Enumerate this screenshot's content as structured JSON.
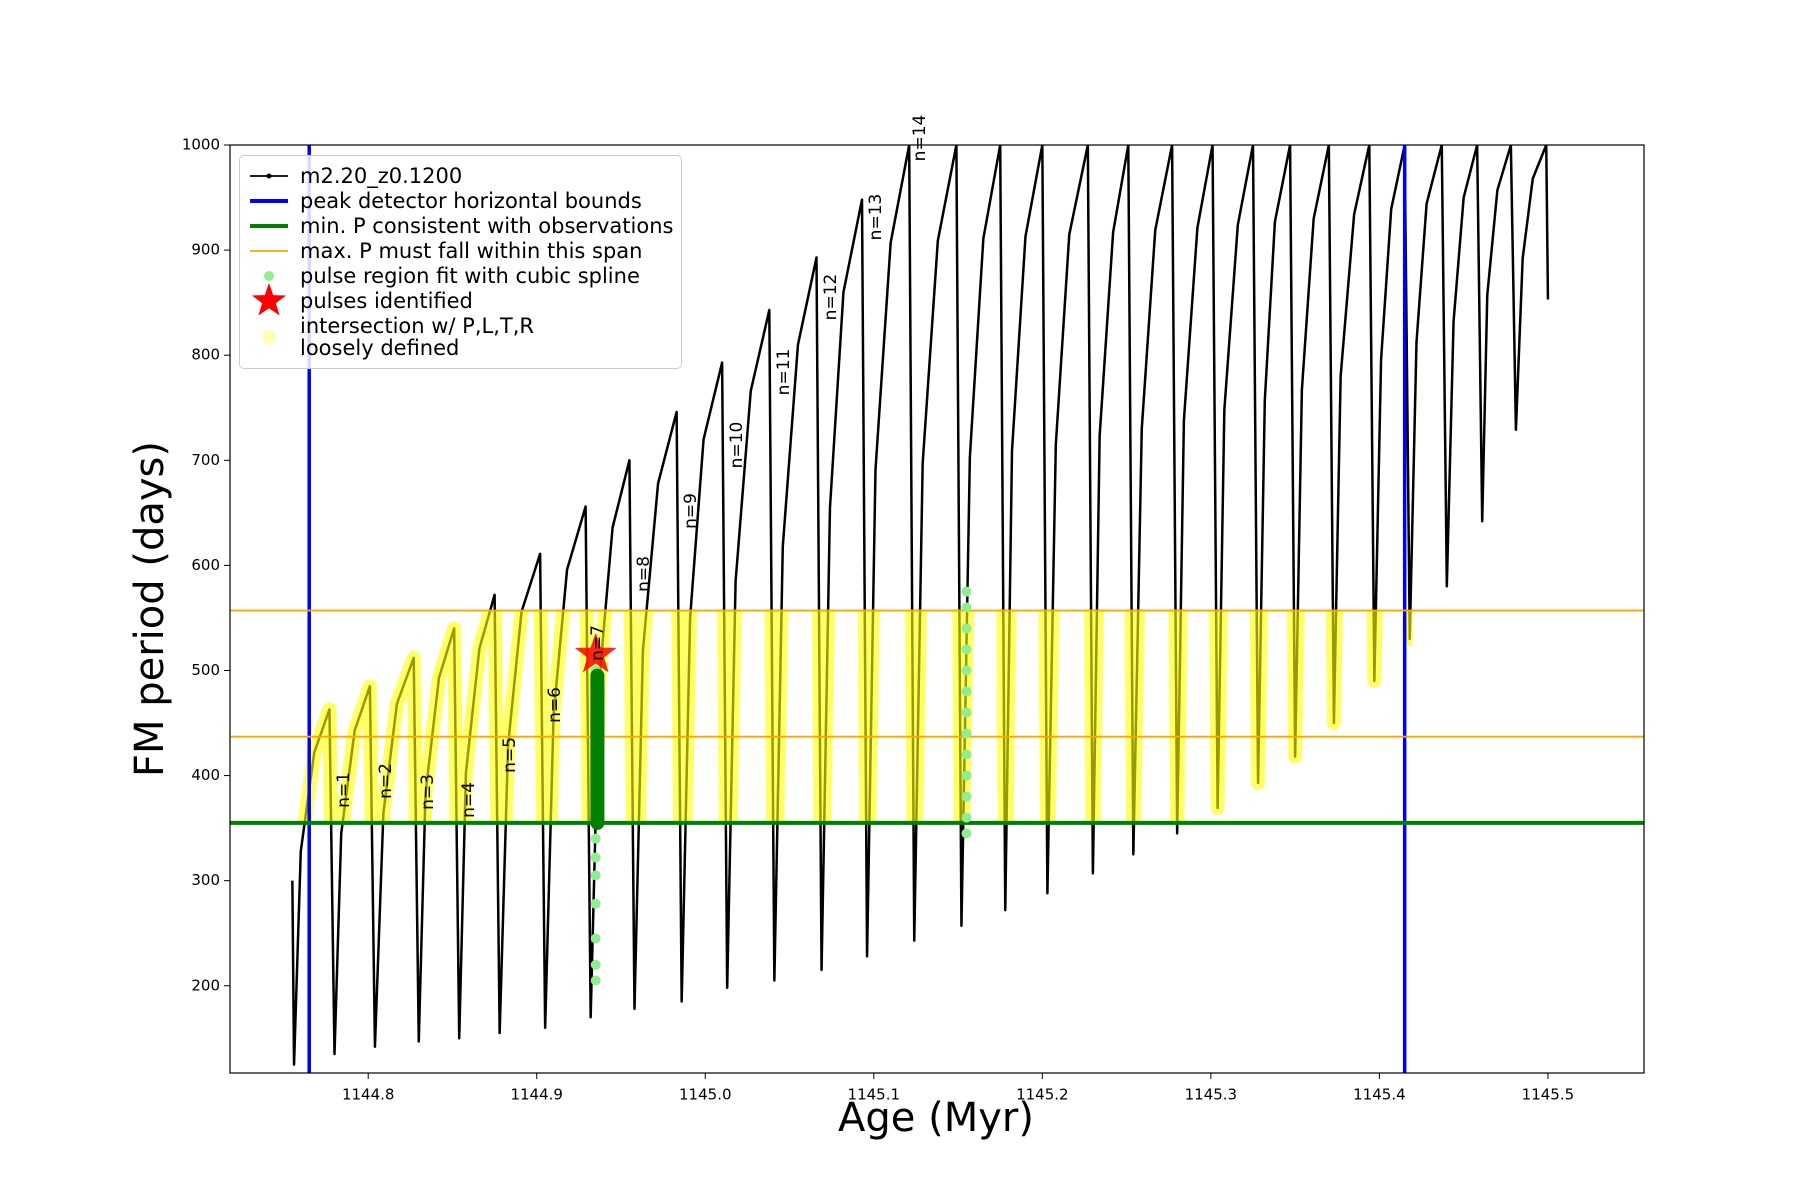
{
  "chart_data": {
    "type": "line",
    "xlabel": "Age (Myr)",
    "ylabel": "FM period (days)",
    "xlim": [
      1144.718,
      1145.557
    ],
    "ylim": [
      117,
      1000
    ],
    "xticks": [
      1144.8,
      1144.9,
      {
        "value": 1145,
        "label": "1145.0"
      },
      1145.1,
      1145.2,
      1145.3,
      1145.4,
      1145.5
    ],
    "yticks": [
      200,
      300,
      400,
      500,
      600,
      700,
      800,
      900,
      1000
    ],
    "legend": "upper left",
    "series": [
      {
        "name": "m2.20_z0.1200",
        "color": "#000000",
        "x": [
          1144.755,
          1144.756,
          1144.76,
          1144.768,
          1144.777,
          1144.78,
          1144.784,
          1144.792,
          1144.801,
          1144.804,
          1144.809,
          1144.817,
          1144.827,
          1144.83,
          1144.834,
          1144.842,
          1144.851,
          1144.854,
          1144.858,
          1144.866,
          1144.875,
          1144.878,
          1144.883,
          1144.891,
          1144.902,
          1144.905,
          1144.91,
          1144.918,
          1144.929,
          1144.932,
          1144.937,
          1144.945,
          1144.955,
          1144.958,
          1144.963,
          1144.972,
          1144.983,
          1144.986,
          1144.991,
          1144.999,
          1145.01,
          1145.013,
          1145.018,
          1145.027,
          1145.038,
          1145.041,
          1145.046,
          1145.055,
          1145.066,
          1145.069,
          1145.074,
          1145.082,
          1145.093,
          1145.096,
          1145.101,
          1145.11,
          1145.121,
          1145.124,
          1145.129,
          1145.138,
          1145.149,
          1145.152,
          1145.157,
          1145.165,
          1145.175,
          1145.178,
          1145.182,
          1145.19,
          1145.2,
          1145.203,
          1145.208,
          1145.216,
          1145.227,
          1145.23,
          1145.234,
          1145.242,
          1145.251,
          1145.254,
          1145.259,
          1145.267,
          1145.277,
          1145.28,
          1145.284,
          1145.292,
          1145.301,
          1145.304,
          1145.308,
          1145.316,
          1145.325,
          1145.328,
          1145.332,
          1145.338,
          1145.347,
          1145.35,
          1145.354,
          1145.361,
          1145.37,
          1145.373,
          1145.377,
          1145.385,
          1145.394,
          1145.397,
          1145.401,
          1145.407,
          1145.415,
          1145.418,
          1145.422,
          1145.428,
          1145.437,
          1145.44,
          1145.444,
          1145.45,
          1145.458,
          1145.461,
          1145.464,
          1145.47,
          1145.478,
          1145.481,
          1145.485,
          1145.491,
          1145.499,
          1145.5
        ],
        "values": [
          300,
          125,
          328,
          422,
          463,
          135,
          345,
          443,
          485,
          142,
          364,
          468,
          512,
          147,
          383,
          493,
          540,
          150,
          403,
          521,
          572,
          155,
          429,
          556,
          611,
          160,
          458,
          596,
          656,
          170,
          488,
          636,
          700,
          178,
          519,
          678,
          746,
          185,
          550,
          720,
          793,
          198,
          585,
          766,
          843,
          205,
          618,
          810,
          893,
          215,
          655,
          860,
          948,
          228,
          691,
          907,
          1000,
          243,
          697,
          909,
          1000,
          257,
          703,
          911,
          1000,
          272,
          709,
          913,
          1000,
          288,
          715,
          915,
          1000,
          307,
          723,
          917,
          1000,
          325,
          730,
          919,
          1000,
          345,
          738,
          921,
          1000,
          369,
          748,
          924,
          1000,
          393,
          757,
          927,
          1000,
          418,
          767,
          930,
          1000,
          450,
          780,
          934,
          1000,
          490,
          796,
          939,
          1000,
          530,
          812,
          944,
          1000,
          580,
          832,
          950,
          1000,
          642,
          857,
          957,
          1000,
          729,
          892,
          968,
          1000,
          853
        ]
      }
    ],
    "vlines": {
      "name": "peak detector horizontal bounds",
      "color": "#0000ff",
      "values": [
        1144.765,
        1145.415
      ]
    },
    "hline": {
      "name": "min. P consistent with observations",
      "color": "#008000",
      "value": 355
    },
    "hspan": {
      "name": "max. P must fall within this span",
      "color": "#ffa500",
      "values": [
        437,
        557
      ]
    },
    "fit_points": {
      "name": "pulse region fit with cubic spline",
      "color": "#90ee90",
      "x": [
        1144.935,
        1144.935,
        1144.935,
        1144.935,
        1144.935,
        1144.935,
        1144.935,
        1144.935,
        1145.155,
        1145.155,
        1145.155,
        1145.155,
        1145.155,
        1145.155,
        1145.155,
        1145.155,
        1145.155,
        1145.155,
        1145.155,
        1145.155,
        1145.155
      ],
      "values": [
        205,
        220,
        245,
        278,
        305,
        322,
        340,
        500,
        345,
        360,
        380,
        400,
        420,
        440,
        460,
        480,
        500,
        520,
        540,
        560,
        575
      ]
    },
    "pulse_fit": {
      "color": "#008000",
      "x": [
        1144.936,
        1144.936
      ],
      "values": [
        355,
        495
      ]
    },
    "pulses": {
      "name": "pulses identified",
      "color": "#ff0000",
      "x": [
        1144.935
      ],
      "values": [
        515
      ]
    },
    "intersection": {
      "name": "intersection w/ P,L,T,R\nloosely defined",
      "color": "#ffff00"
    },
    "annotations": [
      "n=1",
      "n=2",
      "n=3",
      "n=4",
      "n=5",
      "n=6",
      "n=7",
      "n=8",
      "n=9",
      "n=10",
      "n=11",
      "n=12",
      "n=13",
      "n=14"
    ]
  }
}
